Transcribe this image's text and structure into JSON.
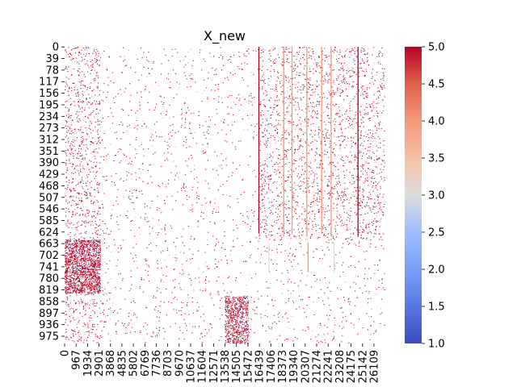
{
  "chart_data": {
    "type": "heatmap",
    "title": "X_new",
    "xlabel": "",
    "ylabel": "",
    "n_rows": 1000,
    "n_cols": 27000,
    "y_tick_labels": [
      "0",
      "39",
      "78",
      "117",
      "156",
      "195",
      "234",
      "273",
      "312",
      "351",
      "390",
      "429",
      "468",
      "507",
      "546",
      "585",
      "624",
      "663",
      "702",
      "741",
      "780",
      "819",
      "858",
      "897",
      "936",
      "975"
    ],
    "x_tick_labels": [
      "0",
      "967",
      "1934",
      "2901",
      "3868",
      "4835",
      "5802",
      "6769",
      "7736",
      "8703",
      "9670",
      "10637",
      "11604",
      "12571",
      "13538",
      "14505",
      "15472",
      "16439",
      "17406",
      "18373",
      "19340",
      "20307",
      "21274",
      "22241",
      "23208",
      "24175",
      "25142",
      "26109"
    ],
    "colorbar": {
      "min": 1.0,
      "max": 5.0,
      "ticks": [
        1.0,
        1.5,
        2.0,
        2.5,
        3.0,
        3.5,
        4.0,
        4.5,
        5.0
      ],
      "tick_labels": [
        "1.0",
        "1.5",
        "2.0",
        "2.5",
        "3.0",
        "3.5",
        "4.0",
        "4.5",
        "5.0"
      ],
      "colormap": "coolwarm"
    },
    "missing_values": "blank (white)",
    "value_pattern": "sparse; values mostly 5 (dark red), occasional 1-4; dense block at columns ~0-3000, rows ~650-830; vertical red stripes near columns ~16400, ~18500-22000, ~24700; dense columns ~13500-15500 for rows ~840-1000"
  },
  "colors": {
    "cmap_low": "#3b4cc0",
    "cmap_mid": "#dddddd",
    "cmap_high": "#b40426"
  }
}
